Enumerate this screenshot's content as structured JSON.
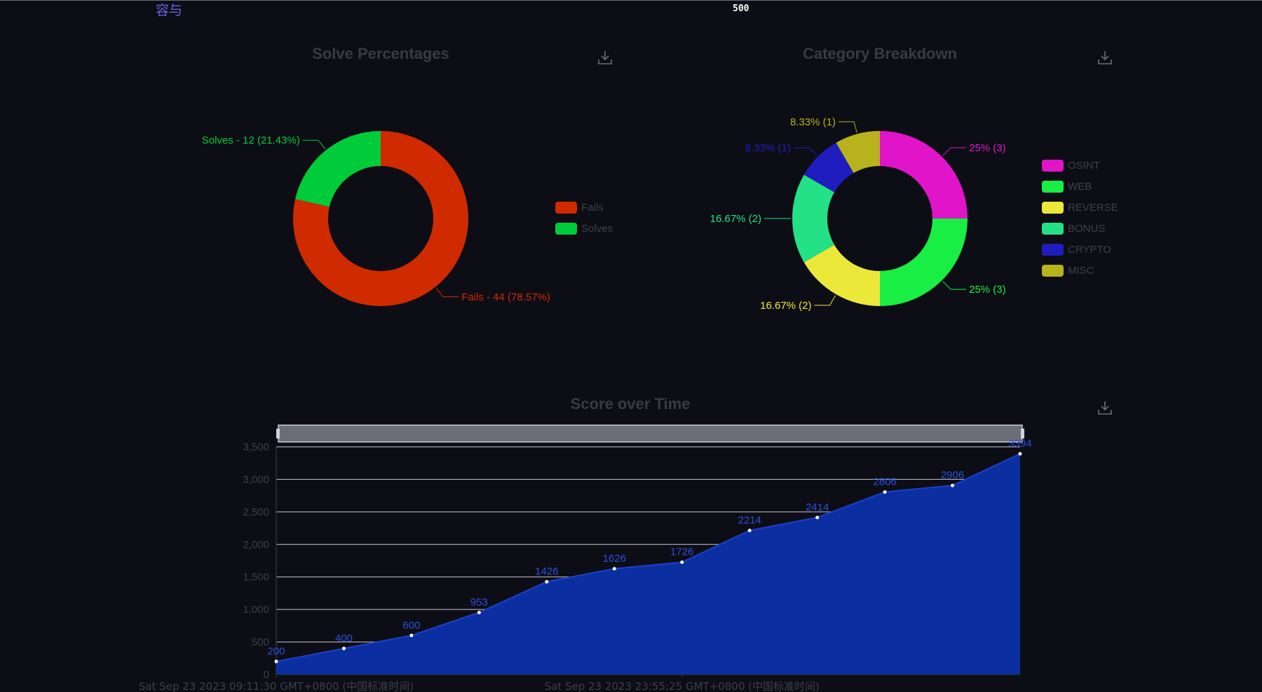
{
  "header": {
    "user_name": "容与",
    "score_value": "500"
  },
  "solve_chart": {
    "title": "Solve Percentages",
    "download_icon": "download-icon"
  },
  "category_chart": {
    "title": "Category Breakdown",
    "download_icon": "download-icon"
  },
  "score_chart": {
    "title": "Score over Time",
    "download_icon": "download-icon",
    "zoom_slider_icon": "range-slider"
  },
  "chart_data": [
    {
      "type": "pie",
      "title": "Solve Percentages",
      "donut": true,
      "legend_position": "right",
      "series": [
        {
          "name": "Fails",
          "value": 44,
          "label": "Fails - 44 (78.57%)",
          "color": "#d02a00"
        },
        {
          "name": "Solves",
          "value": 12,
          "label": "Solves - 12 (21.43%)",
          "color": "#00cc3a"
        }
      ]
    },
    {
      "type": "pie",
      "title": "Category Breakdown",
      "donut": true,
      "legend_position": "right",
      "series": [
        {
          "name": "OSINT",
          "value": 3,
          "label": "25% (3)",
          "color": "#e014c9"
        },
        {
          "name": "WEB",
          "value": 3,
          "label": "25% (3)",
          "color": "#18ee43"
        },
        {
          "name": "REVERSE",
          "value": 2,
          "label": "16.67% (2)",
          "color": "#ece83a"
        },
        {
          "name": "BONUS",
          "value": 2,
          "label": "16.67% (2)",
          "color": "#23e184"
        },
        {
          "name": "CRYPTO",
          "value": 1,
          "label": "8.33% (1)",
          "color": "#1f1dbe"
        },
        {
          "name": "MISC",
          "value": 1,
          "label": "8.33% (1)",
          "color": "#b8b21c"
        }
      ]
    },
    {
      "type": "area",
      "title": "Score over Time",
      "x_labels": [
        "Sat Sep 23 2023 09:11:30 GMT+0800 (中国标准时间)",
        "Sat Sep 23 2023 23:55:25 GMT+0800 (中国标准时间)"
      ],
      "values": [
        200,
        400,
        600,
        953,
        1426,
        1626,
        1726,
        2214,
        2414,
        2806,
        2906,
        3394
      ],
      "point_labels": [
        "200",
        "400",
        "600",
        "953",
        "1426",
        "1626",
        "1726",
        "2214",
        "2414",
        "2806",
        "2906",
        "3394"
      ],
      "ylim": [
        0,
        3500
      ],
      "y_ticks": [
        "0",
        "500",
        "1,000",
        "1,500",
        "2,000",
        "2,500",
        "3,000",
        "3,500"
      ],
      "grid": true,
      "colors": {
        "area": "#0b2fa0",
        "line": "#1d3fcf",
        "label": "#2a4fe0"
      }
    }
  ]
}
